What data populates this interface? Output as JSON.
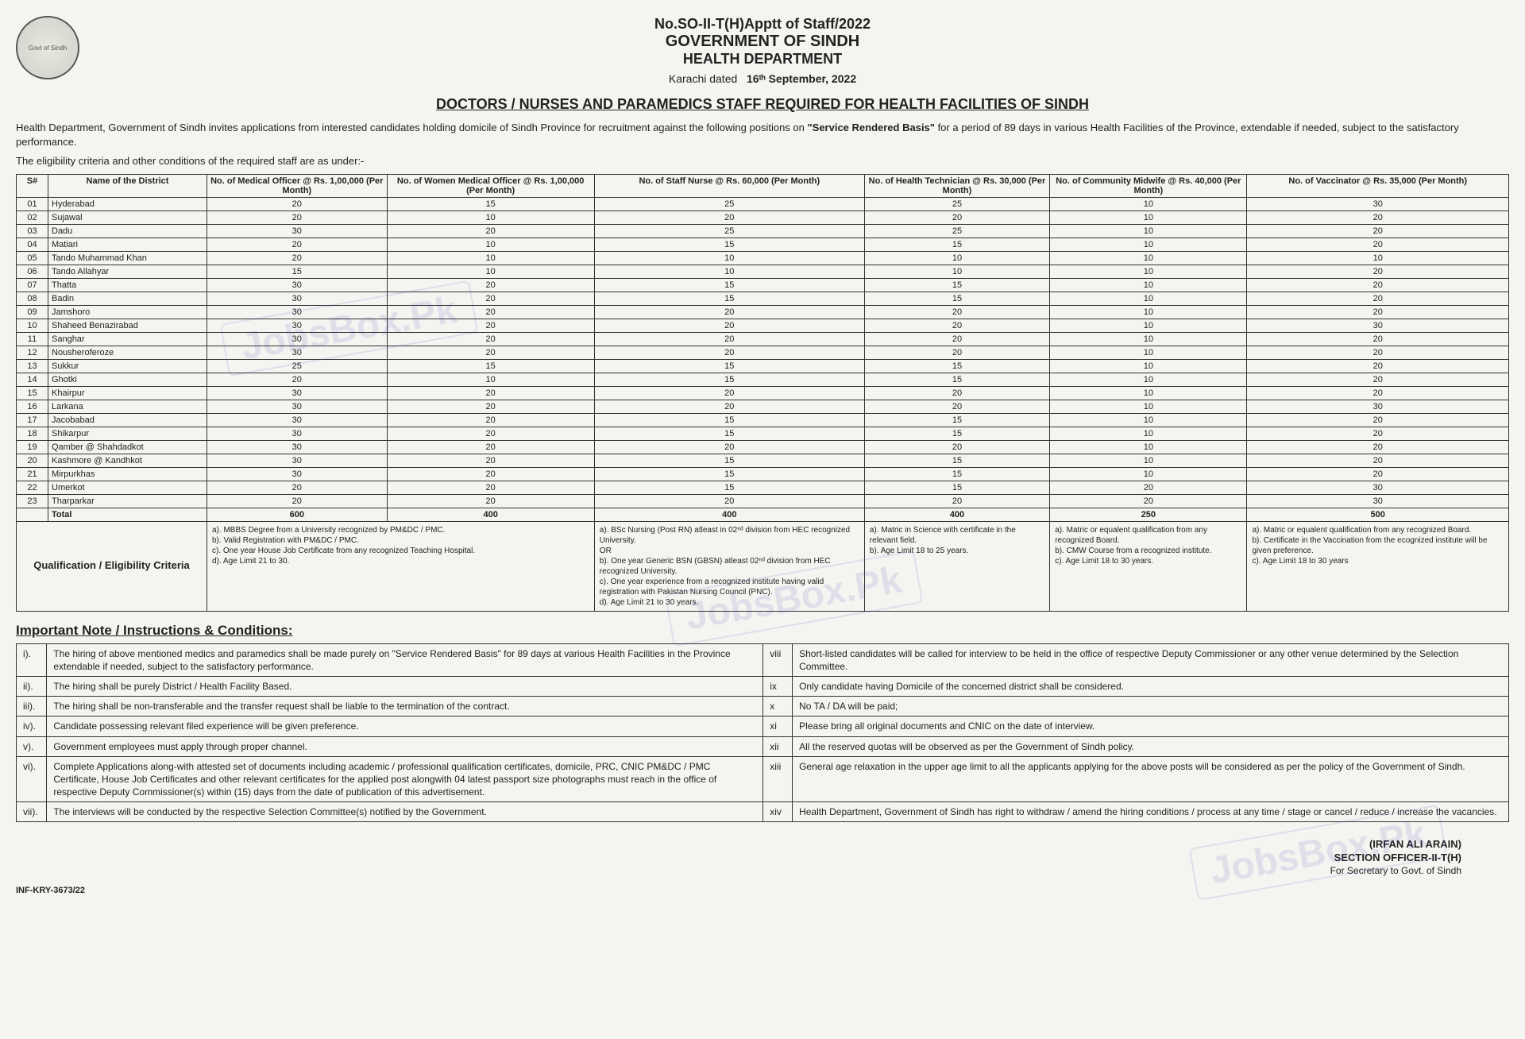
{
  "header": {
    "ref": "No.SO-II-T(H)Apptt of Staff/2022",
    "gov": "GOVERNMENT OF SINDH",
    "dept": "HEALTH DEPARTMENT",
    "dated_prefix": "Karachi dated",
    "dated_date": "16ᵗʰ September, 2022",
    "emblem_text": "Govt of Sindh"
  },
  "title": "DOCTORS / NURSES AND PARAMEDICS STAFF REQUIRED FOR HEALTH FACILITIES OF SINDH",
  "intro1a": "Health Department, Government of Sindh invites applications from interested candidates holding domicile of Sindh Province for recruitment against the following positions on ",
  "intro1b": "\"Service Rendered Basis\"",
  "intro1c": " for a period of 89 days in various Health Facilities of the Province, extendable if needed, subject to the satisfactory performance.",
  "intro2": "The eligibility criteria and other conditions of the required staff are as under:-",
  "columns": {
    "sno": "S#",
    "district": "Name of the District",
    "mo": "No. of Medical Officer @ Rs. 1,00,000 (Per Month)",
    "wmo": "No. of Women Medical Officer @ Rs. 1,00,000 (Per Month)",
    "nurse": "No. of Staff Nurse @ Rs. 60,000 (Per Month)",
    "tech": "No. of Health Technician @ Rs. 30,000 (Per Month)",
    "midwife": "No. of Community Midwife @ Rs. 40,000 (Per Month)",
    "vacc": "No. of Vaccinator @ Rs. 35,000 (Per Month)"
  },
  "rows": [
    {
      "n": "01",
      "d": "Hyderabad",
      "mo": "20",
      "wmo": "15",
      "nurse": "25",
      "tech": "25",
      "mid": "10",
      "vac": "30"
    },
    {
      "n": "02",
      "d": "Sujawal",
      "mo": "20",
      "wmo": "10",
      "nurse": "20",
      "tech": "20",
      "mid": "10",
      "vac": "20"
    },
    {
      "n": "03",
      "d": "Dadu",
      "mo": "30",
      "wmo": "20",
      "nurse": "25",
      "tech": "25",
      "mid": "10",
      "vac": "20"
    },
    {
      "n": "04",
      "d": "Matiari",
      "mo": "20",
      "wmo": "10",
      "nurse": "15",
      "tech": "15",
      "mid": "10",
      "vac": "20"
    },
    {
      "n": "05",
      "d": "Tando Muhammad Khan",
      "mo": "20",
      "wmo": "10",
      "nurse": "10",
      "tech": "10",
      "mid": "10",
      "vac": "10"
    },
    {
      "n": "06",
      "d": "Tando Allahyar",
      "mo": "15",
      "wmo": "10",
      "nurse": "10",
      "tech": "10",
      "mid": "10",
      "vac": "20"
    },
    {
      "n": "07",
      "d": "Thatta",
      "mo": "30",
      "wmo": "20",
      "nurse": "15",
      "tech": "15",
      "mid": "10",
      "vac": "20"
    },
    {
      "n": "08",
      "d": "Badin",
      "mo": "30",
      "wmo": "20",
      "nurse": "15",
      "tech": "15",
      "mid": "10",
      "vac": "20"
    },
    {
      "n": "09",
      "d": "Jamshoro",
      "mo": "30",
      "wmo": "20",
      "nurse": "20",
      "tech": "20",
      "mid": "10",
      "vac": "20"
    },
    {
      "n": "10",
      "d": "Shaheed Benazirabad",
      "mo": "30",
      "wmo": "20",
      "nurse": "20",
      "tech": "20",
      "mid": "10",
      "vac": "30"
    },
    {
      "n": "11",
      "d": "Sanghar",
      "mo": "30",
      "wmo": "20",
      "nurse": "20",
      "tech": "20",
      "mid": "10",
      "vac": "20"
    },
    {
      "n": "12",
      "d": "Nousheroferoze",
      "mo": "30",
      "wmo": "20",
      "nurse": "20",
      "tech": "20",
      "mid": "10",
      "vac": "20"
    },
    {
      "n": "13",
      "d": "Sukkur",
      "mo": "25",
      "wmo": "15",
      "nurse": "15",
      "tech": "15",
      "mid": "10",
      "vac": "20"
    },
    {
      "n": "14",
      "d": "Ghotki",
      "mo": "20",
      "wmo": "10",
      "nurse": "15",
      "tech": "15",
      "mid": "10",
      "vac": "20"
    },
    {
      "n": "15",
      "d": "Khairpur",
      "mo": "30",
      "wmo": "20",
      "nurse": "20",
      "tech": "20",
      "mid": "10",
      "vac": "20"
    },
    {
      "n": "16",
      "d": "Larkana",
      "mo": "30",
      "wmo": "20",
      "nurse": "20",
      "tech": "20",
      "mid": "10",
      "vac": "30"
    },
    {
      "n": "17",
      "d": "Jacobabad",
      "mo": "30",
      "wmo": "20",
      "nurse": "15",
      "tech": "15",
      "mid": "10",
      "vac": "20"
    },
    {
      "n": "18",
      "d": "Shikarpur",
      "mo": "30",
      "wmo": "20",
      "nurse": "15",
      "tech": "15",
      "mid": "10",
      "vac": "20"
    },
    {
      "n": "19",
      "d": "Qamber @ Shahdadkot",
      "mo": "30",
      "wmo": "20",
      "nurse": "20",
      "tech": "20",
      "mid": "10",
      "vac": "20"
    },
    {
      "n": "20",
      "d": "Kashmore @ Kandhkot",
      "mo": "30",
      "wmo": "20",
      "nurse": "15",
      "tech": "15",
      "mid": "10",
      "vac": "20"
    },
    {
      "n": "21",
      "d": "Mirpurkhas",
      "mo": "30",
      "wmo": "20",
      "nurse": "15",
      "tech": "15",
      "mid": "10",
      "vac": "20"
    },
    {
      "n": "22",
      "d": "Umerkot",
      "mo": "20",
      "wmo": "20",
      "nurse": "15",
      "tech": "15",
      "mid": "20",
      "vac": "30"
    },
    {
      "n": "23",
      "d": "Tharparkar",
      "mo": "20",
      "wmo": "20",
      "nurse": "20",
      "tech": "20",
      "mid": "20",
      "vac": "30"
    }
  ],
  "total": {
    "label": "Total",
    "mo": "600",
    "wmo": "400",
    "nurse": "400",
    "tech": "400",
    "mid": "250",
    "vac": "500"
  },
  "qual_label": "Qualification / Eligibility Criteria",
  "qual": {
    "mo": "a). MBBS Degree from a University recognized by PM&DC / PMC.\nb). Valid Registration with PM&DC / PMC.\nc). One year House Job Certificate from any recognized Teaching Hospital.\nd). Age Limit 21 to 30.",
    "nurse": "a). BSc Nursing (Post RN) atleast in 02ⁿᵈ division from HEC recognized University.\nOR\nb). One year Generic BSN (GBSN) atleast 02ⁿᵈ division from HEC recognized University.\nc). One year experience from a recognized institute having valid registration with Pakistan Nursing Council (PNC).\nd). Age Limit 21 to 30 years.",
    "tech": "a). Matric in Science with certificate in the relevant field.\nb). Age Limit 18 to 25 years.",
    "mid": "a). Matric or equalent qualification from any recognized Board.\nb). CMW Course from a recognized institute.\nc). Age Limit 18 to 30 years.",
    "vac": "a). Matric or equalent qualification from any recognized Board.\nb). Certificate in the Vaccination from the ecognized institute will be given preference.\nc). Age Limit 18 to 30 years"
  },
  "notes_title": "Important Note / Instructions & Conditions:",
  "notes_left": [
    {
      "n": "i).",
      "t": "The hiring of above mentioned medics and paramedics shall be made purely on \"Service Rendered Basis\" for 89 days at various Health Facilities in the Province extendable if needed, subject to the satisfactory performance."
    },
    {
      "n": "ii).",
      "t": "The hiring shall be purely District / Health Facility Based."
    },
    {
      "n": "iii).",
      "t": "The hiring shall be non-transferable and the transfer request shall be liable to the termination of the contract."
    },
    {
      "n": "iv).",
      "t": "Candidate possessing relevant filed experience will be given preference."
    },
    {
      "n": "v).",
      "t": "Government employees must apply through proper channel."
    },
    {
      "n": "vi).",
      "t": "Complete Applications along-with attested set of documents including academic / professional qualification certificates, domicile, PRC, CNIC PM&DC / PMC Certificate, House Job Certificates and other relevant certificates for the applied post alongwith 04 latest passport size photographs must reach in the office of respective Deputy Commissioner(s) within (15) days from the date of publication of this advertisement."
    },
    {
      "n": "vii).",
      "t": "The interviews will be conducted by the respective Selection Committee(s) notified by the Government."
    }
  ],
  "notes_right": [
    {
      "n": "viii",
      "t": "Short-listed candidates will be called for interview to be held in the office of respective Deputy Commissioner or any other venue determined by the Selection Committee."
    },
    {
      "n": "ix",
      "t": "Only candidate having Domicile of the concerned district shall be considered."
    },
    {
      "n": "x",
      "t": "No TA / DA will be paid;"
    },
    {
      "n": "xi",
      "t": "Please bring all original documents and CNIC on the date of interview."
    },
    {
      "n": "xii",
      "t": "All the reserved quotas will be observed as per the Government of Sindh policy."
    },
    {
      "n": "xiii",
      "t": "General age relaxation in the upper age limit to all the applicants applying for the above posts will be considered as per the policy of the Government of Sindh."
    },
    {
      "n": "xiv",
      "t": "Health Department, Government of Sindh has right to withdraw / amend the hiring conditions / process at any time / stage or cancel / reduce / increase the vacancies."
    }
  ],
  "signature": {
    "name": "(IRFAN ALI ARAIN)",
    "title": "SECTION OFFICER-II-T(H)",
    "sub": "For Secretary to Govt. of Sindh"
  },
  "footer_ref": "INF-KRY-3673/22",
  "watermark": "JobsBox.Pk"
}
